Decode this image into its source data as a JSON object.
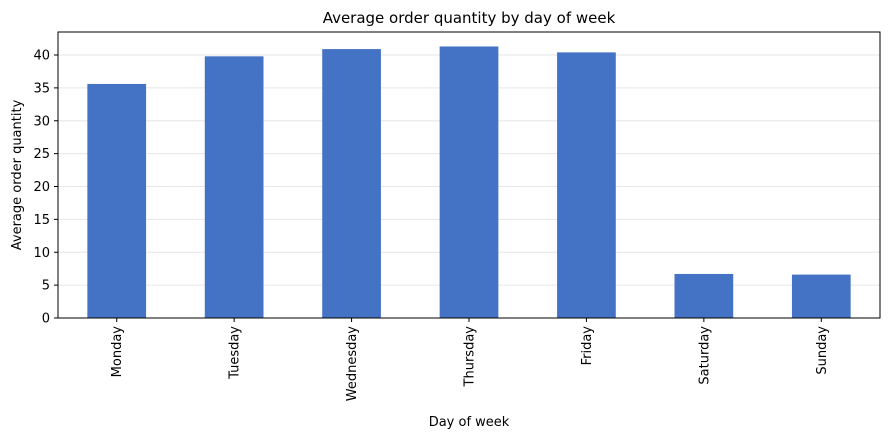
{
  "chart_data": {
    "type": "bar",
    "title": "Average order quantity by day of week",
    "xlabel": "Day of week",
    "ylabel": "Average order quantity",
    "categories": [
      "Monday",
      "Tuesday",
      "Wednesday",
      "Thursday",
      "Friday",
      "Saturday",
      "Sunday"
    ],
    "values": [
      35.6,
      39.8,
      40.9,
      41.3,
      40.4,
      6.7,
      6.6
    ],
    "ylim": [
      0,
      43.5
    ],
    "yticks": [
      0,
      5,
      10,
      15,
      20,
      25,
      30,
      35,
      40
    ],
    "grid": "y",
    "legend": "none",
    "bar_color": "#4472c4",
    "grid_color": "#e6e6e6"
  }
}
